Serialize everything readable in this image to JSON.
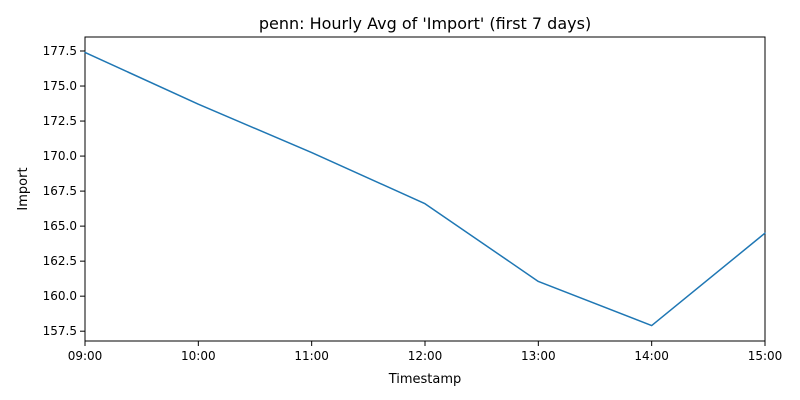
{
  "chart_data": {
    "type": "line",
    "title": "penn: Hourly Avg of 'Import' (first 7 days)",
    "xlabel": "Timestamp",
    "ylabel": "Import",
    "x": [
      "09:00",
      "10:00",
      "11:00",
      "12:00",
      "13:00",
      "14:00",
      "15:00"
    ],
    "series": [
      {
        "values": [
          177.4,
          173.7,
          170.25,
          166.6,
          161.05,
          157.9,
          164.5
        ],
        "color": "#1f77b4"
      }
    ],
    "ylim": [
      156.8,
      178.5
    ],
    "yticks": [
      157.5,
      160.0,
      162.5,
      165.0,
      167.5,
      170.0,
      172.5,
      175.0,
      177.5
    ],
    "ytick_labels": [
      "157.5",
      "160.0",
      "162.5",
      "165.0",
      "167.5",
      "170.0",
      "172.5",
      "175.0",
      "177.5"
    ],
    "grid": false,
    "legend": false
  }
}
